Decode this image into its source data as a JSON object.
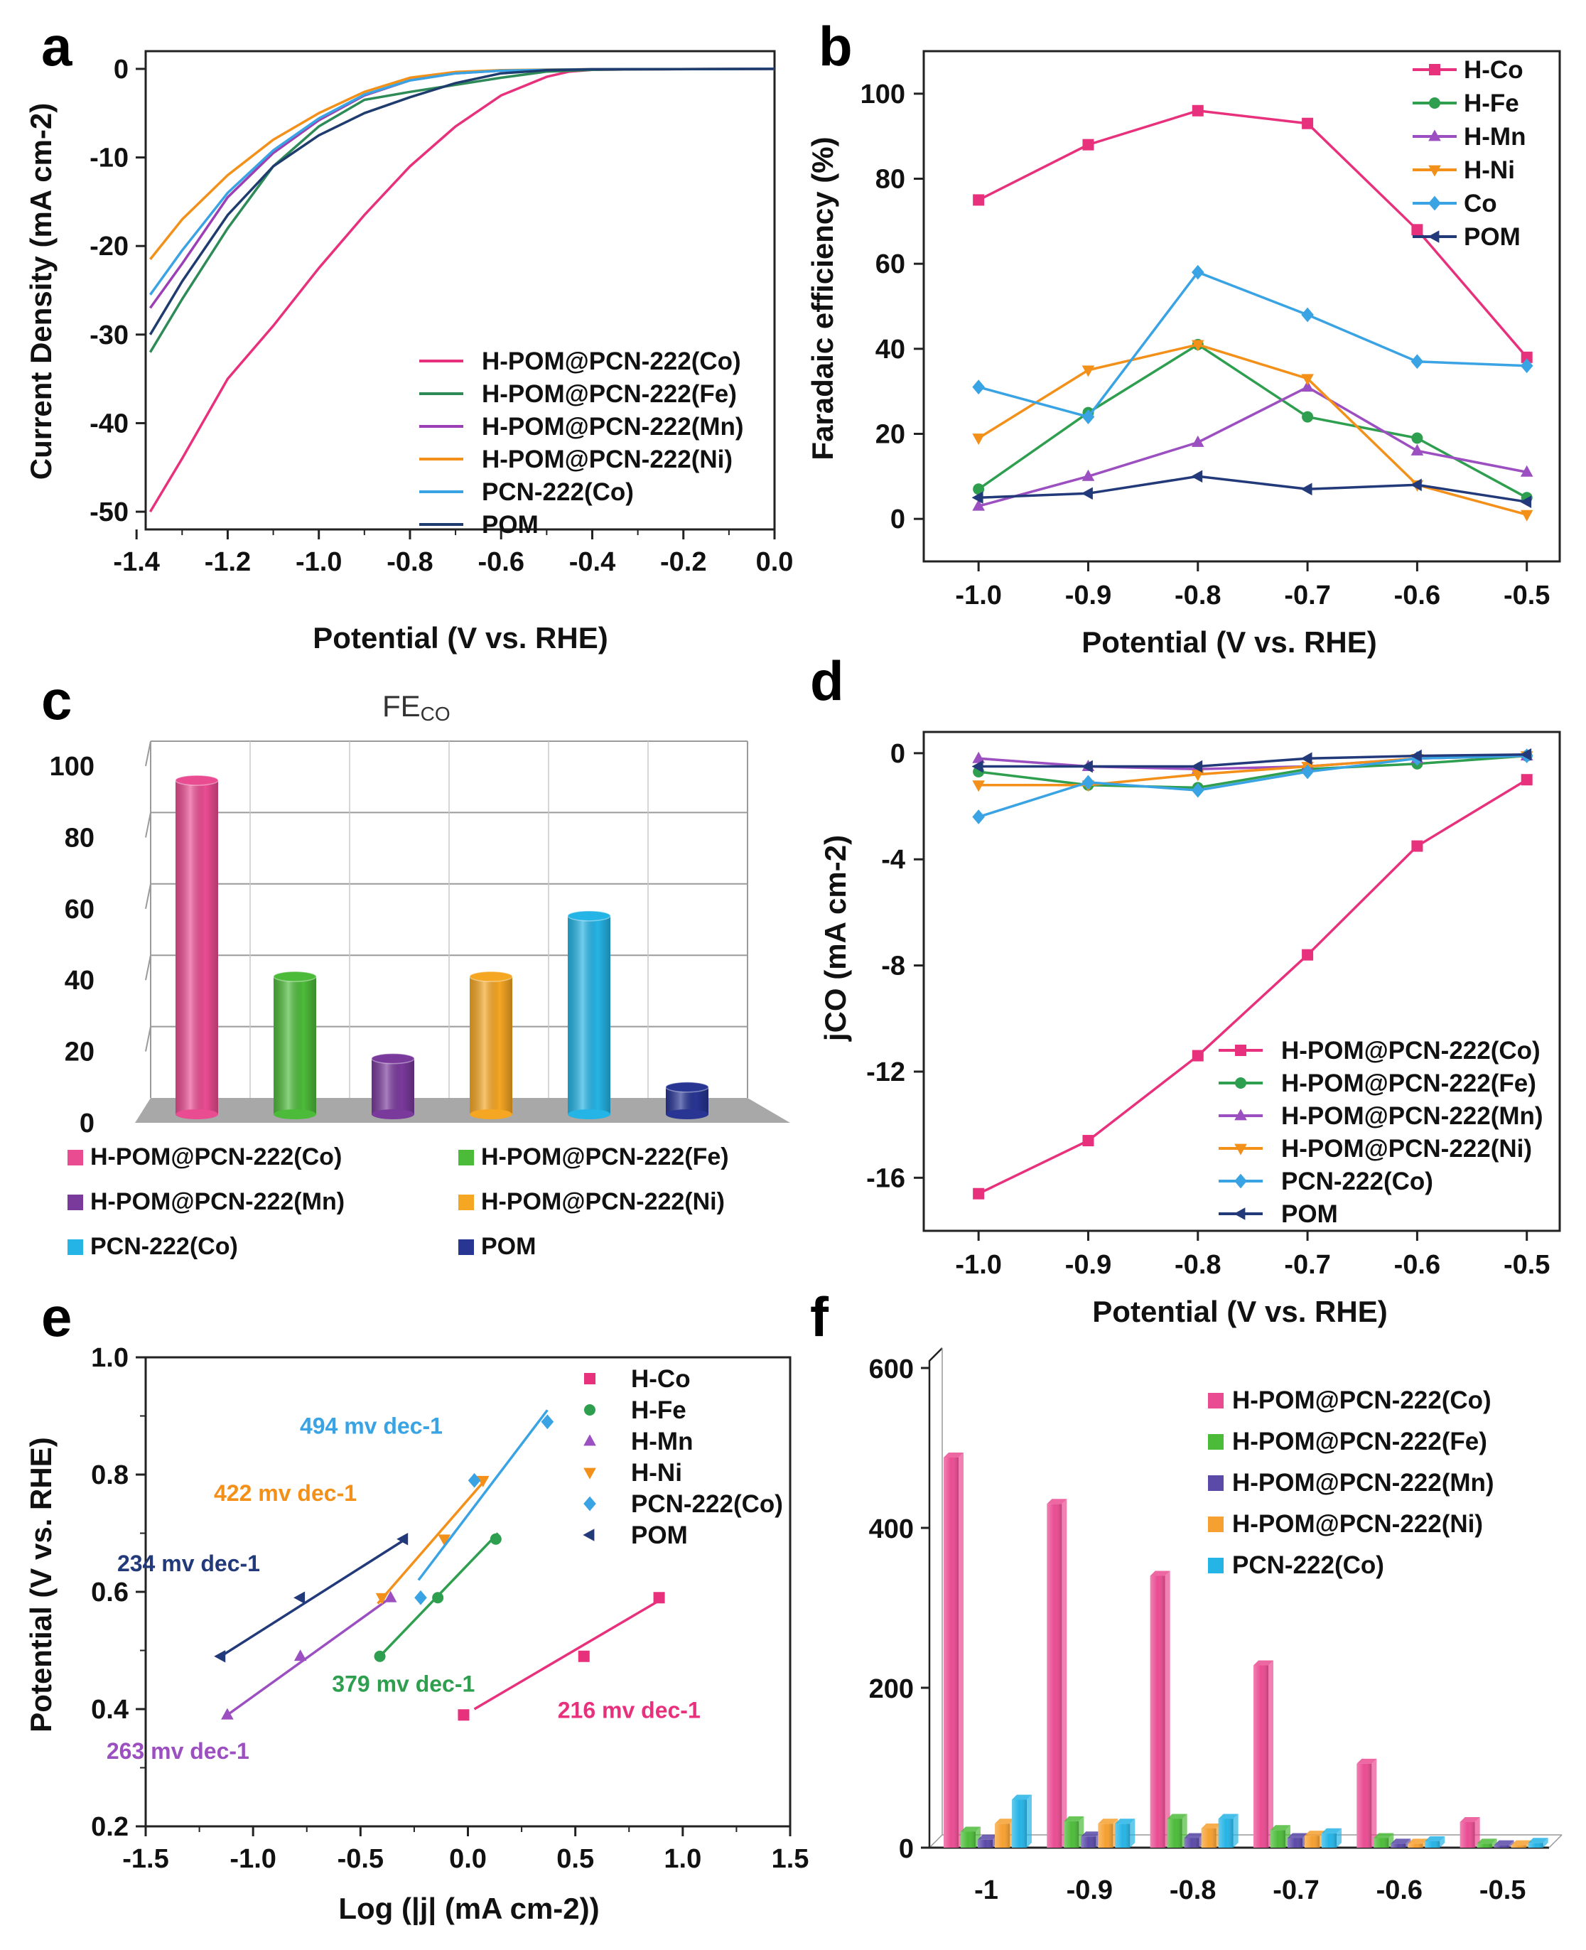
{
  "panels": {
    "a": "a",
    "b": "b",
    "c": "c",
    "d": "d",
    "e": "e",
    "f": "f"
  },
  "chart_data": [
    {
      "id": "a",
      "type": "line",
      "xlabel": "Potential (V vs. RHE)",
      "ylabel": "Current Density (mA cm-2)",
      "xlim": [
        -1.38,
        0.0
      ],
      "ylim": [
        -52,
        2
      ],
      "xticks": [
        "-1.4",
        "-1.2",
        "-1.0",
        "-0.8",
        "-0.6",
        "-0.4",
        "-0.2",
        "0.0"
      ],
      "yticks": [
        "0",
        "-10",
        "-20",
        "-30",
        "-40",
        "-50"
      ],
      "legend_position": "bottom-right",
      "series": [
        {
          "name": "H-POM@PCN-222(Co)",
          "color": "#e8317c",
          "x": [
            -1.37,
            -1.3,
            -1.2,
            -1.1,
            -1.0,
            -0.9,
            -0.8,
            -0.7,
            -0.6,
            -0.5,
            -0.45,
            -0.4,
            -0.3,
            0.0
          ],
          "y": [
            -50,
            -44,
            -35,
            -29,
            -22.5,
            -16.5,
            -11,
            -6.5,
            -3,
            -0.9,
            -0.3,
            -0.1,
            -0.05,
            0
          ]
        },
        {
          "name": "H-POM@PCN-222(Fe)",
          "color": "#2e8b57",
          "x": [
            -1.37,
            -1.3,
            -1.2,
            -1.1,
            -1.0,
            -0.9,
            -0.8,
            -0.7,
            -0.6,
            -0.5,
            -0.4,
            -0.3,
            0.0
          ],
          "y": [
            -32,
            -26,
            -18,
            -11,
            -6.5,
            -3.5,
            -2.6,
            -1.8,
            -1.0,
            -0.3,
            -0.1,
            -0.05,
            0
          ]
        },
        {
          "name": "H-POM@PCN-222(Mn)",
          "color": "#9b3fb5",
          "x": [
            -1.37,
            -1.3,
            -1.2,
            -1.1,
            -1.0,
            -0.9,
            -0.8,
            -0.7,
            -0.6,
            -0.5,
            -0.4,
            0.0
          ],
          "y": [
            -27,
            -22,
            -14.5,
            -9.5,
            -5.8,
            -3,
            -1.3,
            -0.5,
            -0.2,
            -0.1,
            -0.05,
            0
          ]
        },
        {
          "name": "H-POM@PCN-222(Ni)",
          "color": "#f39019",
          "x": [
            -1.37,
            -1.3,
            -1.2,
            -1.1,
            -1.0,
            -0.9,
            -0.8,
            -0.7,
            -0.6,
            -0.5,
            -0.4,
            0.0
          ],
          "y": [
            -21.5,
            -17,
            -12,
            -8,
            -5,
            -2.6,
            -1.0,
            -0.35,
            -0.15,
            -0.08,
            -0.05,
            0
          ]
        },
        {
          "name": "PCN-222(Co)",
          "color": "#3aa3e3",
          "x": [
            -1.37,
            -1.3,
            -1.2,
            -1.1,
            -1.0,
            -0.9,
            -0.8,
            -0.7,
            -0.6,
            -0.5,
            -0.4,
            0.0
          ],
          "y": [
            -25.5,
            -20.5,
            -14,
            -9.2,
            -5.6,
            -2.9,
            -1.3,
            -0.5,
            -0.2,
            -0.1,
            -0.05,
            0
          ]
        },
        {
          "name": "POM",
          "color": "#1f3c6e",
          "x": [
            -1.37,
            -1.3,
            -1.2,
            -1.1,
            -1.0,
            -0.9,
            -0.8,
            -0.7,
            -0.6,
            -0.5,
            -0.4,
            0.0
          ],
          "y": [
            -30,
            -24,
            -16.5,
            -11,
            -7.5,
            -5.0,
            -3.2,
            -1.6,
            -0.5,
            -0.15,
            -0.05,
            0
          ]
        }
      ]
    },
    {
      "id": "b",
      "type": "line",
      "xlabel": "Potential (V vs. RHE)",
      "ylabel": "Faradaic efficiency (%)",
      "xlim": [
        -1.05,
        -0.47
      ],
      "ylim": [
        -10,
        110
      ],
      "xticks": [
        "-1.0",
        "-0.9",
        "-0.8",
        "-0.7",
        "-0.6",
        "-0.5"
      ],
      "yticks": [
        "0",
        "20",
        "40",
        "60",
        "80",
        "100"
      ],
      "legend_position": "top-right",
      "x": [
        -1.0,
        -0.9,
        -0.8,
        -0.7,
        -0.6,
        -0.5
      ],
      "series": [
        {
          "name": "H-Co",
          "color": "#e8317c",
          "marker": "square",
          "values": [
            75,
            88,
            96,
            93,
            68,
            38
          ]
        },
        {
          "name": "H-Fe",
          "color": "#2e9e4f",
          "marker": "circle",
          "values": [
            7,
            25,
            41,
            24,
            19,
            5
          ]
        },
        {
          "name": "H-Mn",
          "color": "#9b4fc0",
          "marker": "triangle-up",
          "values": [
            3,
            10,
            18,
            31,
            16,
            11
          ]
        },
        {
          "name": "H-Ni",
          "color": "#f39019",
          "marker": "triangle-down",
          "values": [
            19,
            35,
            41,
            33,
            8,
            1
          ]
        },
        {
          "name": "Co",
          "color": "#3aa3e3",
          "marker": "diamond",
          "values": [
            31,
            24,
            58,
            48,
            37,
            36
          ]
        },
        {
          "name": "POM",
          "color": "#233a7a",
          "marker": "triangle-left",
          "values": [
            5,
            6,
            10,
            7,
            8,
            4
          ]
        }
      ]
    },
    {
      "id": "c",
      "type": "bar",
      "title": "FE",
      "title_sub": "CO",
      "yticks": [
        "0",
        "20",
        "40",
        "60",
        "80",
        "100"
      ],
      "ylim": [
        0,
        100
      ],
      "categories": [
        "H-POM@PCN-222(Co)",
        "H-POM@PCN-222(Fe)",
        "H-POM@PCN-222(Mn)",
        "H-POM@PCN-222(Ni)",
        "PCN-222(Co)",
        "POM"
      ],
      "values": [
        96,
        41,
        18,
        41,
        58,
        10
      ],
      "colors": [
        "#ea4c92",
        "#4dbb3a",
        "#7a3a9c",
        "#f5a623",
        "#25b4e6",
        "#283593"
      ],
      "legend_position": "bottom"
    },
    {
      "id": "d",
      "type": "line",
      "xlabel": "Potential (V vs. RHE)",
      "ylabel": "jCO (mA cm-2)",
      "xlim": [
        -1.05,
        -0.47
      ],
      "ylim": [
        -18,
        0.8
      ],
      "xticks": [
        "-1.0",
        "-0.9",
        "-0.8",
        "-0.7",
        "-0.6",
        "-0.5"
      ],
      "yticks": [
        "0",
        "-4",
        "-8",
        "-12",
        "-16"
      ],
      "legend_position": "bottom-right",
      "x": [
        -1.0,
        -0.9,
        -0.8,
        -0.7,
        -0.6,
        -0.5
      ],
      "series": [
        {
          "name": "H-POM@PCN-222(Co)",
          "color": "#e8317c",
          "marker": "square",
          "values": [
            -16.6,
            -14.6,
            -11.4,
            -7.6,
            -3.5,
            -1.0
          ]
        },
        {
          "name": "H-POM@PCN-222(Fe)",
          "color": "#2e9e4f",
          "marker": "circle",
          "values": [
            -0.7,
            -1.2,
            -1.3,
            -0.6,
            -0.4,
            -0.1
          ]
        },
        {
          "name": "H-POM@PCN-222(Mn)",
          "color": "#9b4fc0",
          "marker": "triangle-up",
          "values": [
            -0.2,
            -0.5,
            -0.6,
            -0.5,
            -0.2,
            -0.1
          ]
        },
        {
          "name": "H-POM@PCN-222(Ni)",
          "color": "#f39019",
          "marker": "triangle-down",
          "values": [
            -1.2,
            -1.2,
            -0.8,
            -0.5,
            -0.2,
            -0.1
          ]
        },
        {
          "name": "PCN-222(Co)",
          "color": "#3aa3e3",
          "marker": "diamond",
          "values": [
            -2.4,
            -1.1,
            -1.4,
            -0.7,
            -0.2,
            -0.1
          ]
        },
        {
          "name": "POM",
          "color": "#233a7a",
          "marker": "triangle-left",
          "values": [
            -0.5,
            -0.5,
            -0.5,
            -0.2,
            -0.1,
            -0.05
          ]
        }
      ]
    },
    {
      "id": "e",
      "type": "scatter",
      "xlabel": "Log (|j| (mA cm-2))",
      "ylabel": "Potential (V vs. RHE)",
      "xlim": [
        -1.5,
        1.5
      ],
      "ylim": [
        0.2,
        1.0
      ],
      "xticks": [
        "-1.5",
        "-1.0",
        "-0.5",
        "0.0",
        "0.5",
        "1.0",
        "1.5"
      ],
      "yticks": [
        "0.2",
        "0.4",
        "0.6",
        "0.8",
        "1.0"
      ],
      "legend_position": "top-right",
      "series": [
        {
          "name": "H-Co",
          "color": "#e8317c",
          "marker": "square",
          "x": [
            -0.02,
            0.54,
            0.89
          ],
          "y": [
            0.39,
            0.49,
            0.59
          ],
          "fit_x": [
            0.03,
            0.89
          ],
          "fit_y": [
            0.4,
            0.585
          ],
          "slope_label": "216 mv dec-1"
        },
        {
          "name": "H-Fe",
          "color": "#2e9e4f",
          "marker": "circle",
          "x": [
            -0.41,
            -0.14,
            0.13
          ],
          "y": [
            0.49,
            0.59,
            0.69
          ],
          "fit_x": [
            -0.41,
            0.14
          ],
          "fit_y": [
            0.49,
            0.7
          ],
          "slope_label": "379 mv dec-1"
        },
        {
          "name": "H-Mn",
          "color": "#9b4fc0",
          "marker": "triangle-up",
          "x": [
            -1.12,
            -0.78,
            -0.36
          ],
          "y": [
            0.39,
            0.49,
            0.59
          ],
          "fit_x": [
            -1.12,
            -0.36
          ],
          "fit_y": [
            0.39,
            0.59
          ],
          "slope_label": "263 mv dec-1"
        },
        {
          "name": "H-Ni",
          "color": "#f39019",
          "marker": "triangle-down",
          "x": [
            -0.4,
            -0.11,
            0.07
          ],
          "y": [
            0.59,
            0.69,
            0.79
          ],
          "fit_x": [
            -0.42,
            0.09
          ],
          "fit_y": [
            0.58,
            0.795
          ],
          "slope_label": "422 mv dec-1"
        },
        {
          "name": "PCN-222(Co)",
          "color": "#3aa3e3",
          "marker": "diamond",
          "x": [
            -0.22,
            0.03,
            0.37
          ],
          "y": [
            0.59,
            0.79,
            0.89
          ],
          "fit_x": [
            -0.23,
            0.37
          ],
          "fit_y": [
            0.62,
            0.91
          ],
          "slope_label": "494 mv dec-1"
        },
        {
          "name": "POM",
          "color": "#233a7a",
          "marker": "triangle-left",
          "x": [
            -1.15,
            -0.78,
            -0.3
          ],
          "y": [
            0.49,
            0.59,
            0.69
          ],
          "fit_x": [
            -1.15,
            -0.29
          ],
          "fit_y": [
            0.49,
            0.69
          ],
          "slope_label": "234 mv dec-1"
        }
      ]
    },
    {
      "id": "f",
      "type": "bar",
      "categories": [
        "-1",
        "-0.9",
        "-0.8",
        "-0.7",
        "-0.6",
        "-0.5"
      ],
      "ylim": [
        0,
        600
      ],
      "yticks": [
        "0",
        "200",
        "400",
        "600"
      ],
      "legend_position": "top-right",
      "series": [
        {
          "name": "H-POM@PCN-222(Co)",
          "color": "#ea4c92",
          "values": [
            488,
            430,
            340,
            228,
            105,
            32
          ]
        },
        {
          "name": "H-POM@PCN-222(Fe)",
          "color": "#4dbb3a",
          "values": [
            20,
            33,
            36,
            22,
            12,
            5
          ]
        },
        {
          "name": "H-POM@PCN-222(Mn)",
          "color": "#5b4aa8",
          "values": [
            10,
            14,
            12,
            12,
            5,
            3
          ]
        },
        {
          "name": "H-POM@PCN-222(Ni)",
          "color": "#f5a030",
          "values": [
            30,
            30,
            24,
            15,
            5,
            3
          ]
        },
        {
          "name": "PCN-222(Co)",
          "color": "#25b4e6",
          "values": [
            60,
            30,
            36,
            18,
            8,
            6
          ]
        }
      ]
    }
  ]
}
